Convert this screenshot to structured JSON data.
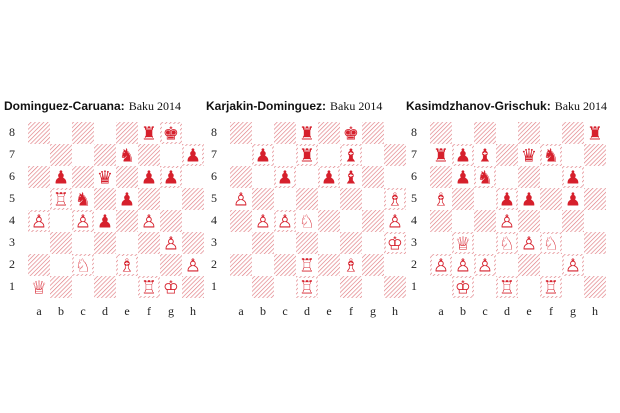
{
  "ranks": [
    "8",
    "7",
    "6",
    "5",
    "4",
    "3",
    "2",
    "1"
  ],
  "files": [
    "a",
    "b",
    "c",
    "d",
    "e",
    "f",
    "g",
    "h"
  ],
  "boards": [
    {
      "players": "Dominguez-Caruana:",
      "event": "Baku 2014",
      "pieces": [
        {
          "square": "f8",
          "piece": "R",
          "side": "black"
        },
        {
          "square": "g8",
          "piece": "K",
          "side": "black"
        },
        {
          "square": "e7",
          "piece": "N",
          "side": "black"
        },
        {
          "square": "h7",
          "piece": "P",
          "side": "black"
        },
        {
          "square": "b6",
          "piece": "P",
          "side": "black"
        },
        {
          "square": "d6",
          "piece": "Q",
          "side": "black"
        },
        {
          "square": "f6",
          "piece": "P",
          "side": "black"
        },
        {
          "square": "g6",
          "piece": "P",
          "side": "black"
        },
        {
          "square": "b5",
          "piece": "R",
          "side": "white"
        },
        {
          "square": "c5",
          "piece": "N",
          "side": "black"
        },
        {
          "square": "e5",
          "piece": "P",
          "side": "black"
        },
        {
          "square": "a4",
          "piece": "P",
          "side": "white"
        },
        {
          "square": "c4",
          "piece": "P",
          "side": "white"
        },
        {
          "square": "d4",
          "piece": "P",
          "side": "black"
        },
        {
          "square": "f4",
          "piece": "P",
          "side": "white"
        },
        {
          "square": "g3",
          "piece": "P",
          "side": "white"
        },
        {
          "square": "c2",
          "piece": "N",
          "side": "white"
        },
        {
          "square": "e2",
          "piece": "B",
          "side": "white"
        },
        {
          "square": "h2",
          "piece": "P",
          "side": "white"
        },
        {
          "square": "a1",
          "piece": "Q",
          "side": "white"
        },
        {
          "square": "f1",
          "piece": "R",
          "side": "white"
        },
        {
          "square": "g1",
          "piece": "K",
          "side": "white"
        }
      ]
    },
    {
      "players": "Karjakin-Dominguez:",
      "event": "Baku 2014",
      "pieces": [
        {
          "square": "d8",
          "piece": "R",
          "side": "black"
        },
        {
          "square": "f8",
          "piece": "K",
          "side": "black"
        },
        {
          "square": "b7",
          "piece": "P",
          "side": "black"
        },
        {
          "square": "d7",
          "piece": "R",
          "side": "black"
        },
        {
          "square": "f7",
          "piece": "B",
          "side": "black"
        },
        {
          "square": "c6",
          "piece": "P",
          "side": "black"
        },
        {
          "square": "e6",
          "piece": "P",
          "side": "black"
        },
        {
          "square": "f6",
          "piece": "B",
          "side": "black"
        },
        {
          "square": "a5",
          "piece": "P",
          "side": "white"
        },
        {
          "square": "h5",
          "piece": "B",
          "side": "white"
        },
        {
          "square": "b4",
          "piece": "P",
          "side": "white"
        },
        {
          "square": "c4",
          "piece": "P",
          "side": "white"
        },
        {
          "square": "d4",
          "piece": "N",
          "side": "white"
        },
        {
          "square": "h4",
          "piece": "P",
          "side": "white"
        },
        {
          "square": "h3",
          "piece": "K",
          "side": "white"
        },
        {
          "square": "d2",
          "piece": "R",
          "side": "white"
        },
        {
          "square": "f2",
          "piece": "B",
          "side": "white"
        },
        {
          "square": "d1",
          "piece": "R",
          "side": "white"
        }
      ]
    },
    {
      "players": "Kasimdzhanov-Grischuk:",
      "event": "Baku 2014",
      "pieces": [
        {
          "square": "h8",
          "piece": "R",
          "side": "black"
        },
        {
          "square": "a7",
          "piece": "R",
          "side": "black"
        },
        {
          "square": "b7",
          "piece": "P",
          "side": "black"
        },
        {
          "square": "c7",
          "piece": "B",
          "side": "black"
        },
        {
          "square": "e7",
          "piece": "Q",
          "side": "black"
        },
        {
          "square": "f7",
          "piece": "N",
          "side": "black"
        },
        {
          "square": "b6",
          "piece": "P",
          "side": "black"
        },
        {
          "square": "c6",
          "piece": "N",
          "side": "black"
        },
        {
          "square": "g6",
          "piece": "P",
          "side": "black"
        },
        {
          "square": "a5",
          "piece": "B",
          "side": "white"
        },
        {
          "square": "d5",
          "piece": "P",
          "side": "black"
        },
        {
          "square": "e5",
          "piece": "P",
          "side": "black"
        },
        {
          "square": "g5",
          "piece": "P",
          "side": "black"
        },
        {
          "square": "d4",
          "piece": "P",
          "side": "white"
        },
        {
          "square": "b3",
          "piece": "Q",
          "side": "white"
        },
        {
          "square": "d3",
          "piece": "N",
          "side": "white"
        },
        {
          "square": "e3",
          "piece": "P",
          "side": "white"
        },
        {
          "square": "f3",
          "piece": "N",
          "side": "white"
        },
        {
          "square": "a2",
          "piece": "P",
          "side": "white"
        },
        {
          "square": "b2",
          "piece": "P",
          "side": "white"
        },
        {
          "square": "c2",
          "piece": "P",
          "side": "white"
        },
        {
          "square": "g2",
          "piece": "P",
          "side": "white"
        },
        {
          "square": "b1",
          "piece": "K",
          "side": "white"
        },
        {
          "square": "d1",
          "piece": "R",
          "side": "white"
        },
        {
          "square": "f1",
          "piece": "R",
          "side": "white"
        }
      ]
    }
  ]
}
